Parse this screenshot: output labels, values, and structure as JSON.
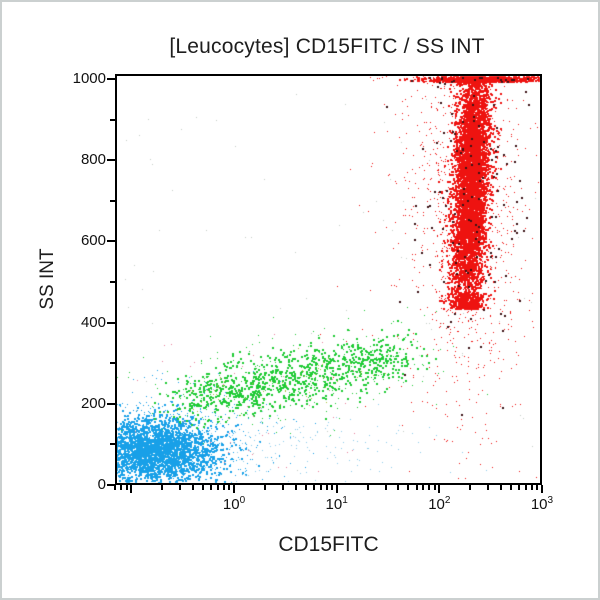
{
  "chart_data": {
    "type": "scatter",
    "subtype": "flow-cytometry-dot-plot",
    "title": "[Leucocytes] CD15FITC / SS INT",
    "xlabel": "CD15FITC",
    "ylabel": "SS INT",
    "x_scale": "log10",
    "x_range_log10": [
      -1.159,
      3
    ],
    "x_major_ticks": [
      {
        "log10": -1,
        "label": ""
      },
      {
        "log10": 0,
        "label": "10",
        "exp": "0"
      },
      {
        "log10": 1,
        "label": "10",
        "exp": "1"
      },
      {
        "log10": 2,
        "label": "10",
        "exp": "2"
      },
      {
        "log10": 3,
        "label": "10",
        "exp": "3"
      }
    ],
    "x_minor_multiples": [
      2,
      3,
      4,
      5,
      6,
      7,
      8,
      9
    ],
    "y_range": [
      0,
      1000
    ],
    "y_major_ticks": [
      0,
      200,
      400,
      600,
      800,
      1000
    ],
    "y_minor_ticks": [
      100,
      300,
      500,
      700,
      900
    ],
    "grid": false,
    "legend": false,
    "render_seed": 42,
    "populations": [
      {
        "name": "lymphocytes",
        "color": "#18a0e8",
        "parts": [
          {
            "kind": "gauss",
            "n": 2400,
            "cx": -0.78,
            "sx": 0.3,
            "cy": 85,
            "sy": 40,
            "size": 2
          },
          {
            "kind": "gauss",
            "n": 700,
            "cx": -0.62,
            "sx": 0.5,
            "cy": 100,
            "sy": 68,
            "size": 1
          }
        ]
      },
      {
        "name": "lymphocyte-scatter-tail",
        "color": "#8ecbe9",
        "parts": [
          {
            "kind": "gauss",
            "n": 170,
            "cx": 0.55,
            "sx": 0.75,
            "cy": 95,
            "sy": 46,
            "size": 1
          }
        ]
      },
      {
        "name": "monocytes",
        "color": "#1fcb35",
        "parts": [
          {
            "kind": "band",
            "n": 950,
            "d0": -0.5,
            "d1": 1.6,
            "ss0": 205,
            "ss1": 320,
            "sd": 0.17,
            "sss": 32,
            "size": 2
          },
          {
            "kind": "band",
            "n": 270,
            "d0": -0.6,
            "d1": 1.85,
            "ss0": 200,
            "ss1": 330,
            "sd": 0.3,
            "sss": 58,
            "size": 1
          }
        ]
      },
      {
        "name": "monocyte-debris-yellow",
        "color": "#a8c23a",
        "parts": [
          {
            "kind": "band",
            "n": 60,
            "d0": -0.4,
            "d1": 1.5,
            "ss0": 210,
            "ss1": 315,
            "sd": 0.15,
            "sss": 30,
            "size": 1
          }
        ]
      },
      {
        "name": "granulocytes",
        "color": "#ee1310",
        "parts": [
          {
            "kind": "vcore",
            "n": 5200,
            "cx": 2.28,
            "sx": 0.085,
            "cy": 740,
            "sy": 175,
            "lean": 0.06,
            "size": 2
          },
          {
            "kind": "gauss",
            "n": 900,
            "cx": 2.28,
            "sx": 0.26,
            "cy": 700,
            "sy": 250,
            "size": 1
          },
          {
            "kind": "gauss",
            "n": 300,
            "cx": 2.1,
            "sx": 0.42,
            "cy": 640,
            "sy": 280,
            "size": 1
          },
          {
            "kind": "pileup",
            "n": 650,
            "cx": 2.42,
            "sx": 0.27,
            "dmin": 1.45,
            "dmax": 3.0,
            "size": 2
          }
        ]
      },
      {
        "name": "granulocyte-dark-specks",
        "color": "#3b1316",
        "parts": [
          {
            "kind": "gauss",
            "n": 150,
            "cx": 2.26,
            "sx": 0.3,
            "cy": 720,
            "sy": 230,
            "size": 2
          }
        ]
      },
      {
        "name": "sparse-pink-debris",
        "color": "#e87f9a",
        "parts": [
          {
            "kind": "uniform",
            "n": 45,
            "d0": -1.0,
            "d1": 1.2,
            "ss0": 30,
            "ss1": 380,
            "size": 1
          }
        ]
      },
      {
        "name": "background-noise",
        "color": "#c2cdc4",
        "parts": [
          {
            "kind": "uniform",
            "n": 70,
            "d0": -1.1,
            "d1": 2.95,
            "ss0": 20,
            "ss1": 980,
            "size": 1
          }
        ]
      }
    ]
  }
}
